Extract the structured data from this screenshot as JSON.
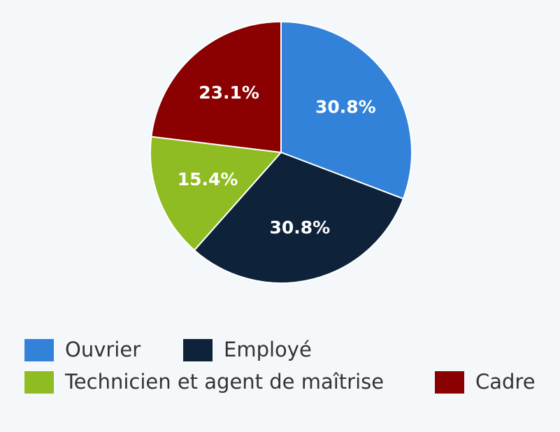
{
  "chart_data": {
    "type": "pie",
    "categories": [
      "Ouvrier",
      "Employé",
      "Technicien et agent de maîtrise",
      "Cadre"
    ],
    "values": [
      30.8,
      30.8,
      15.4,
      23.1
    ],
    "value_labels": [
      "30.8%",
      "30.8%",
      "15.4%",
      "23.1%"
    ],
    "colors": [
      "#3282d9",
      "#0e2239",
      "#8fbc22",
      "#8b0000"
    ],
    "legend": "bottom"
  }
}
